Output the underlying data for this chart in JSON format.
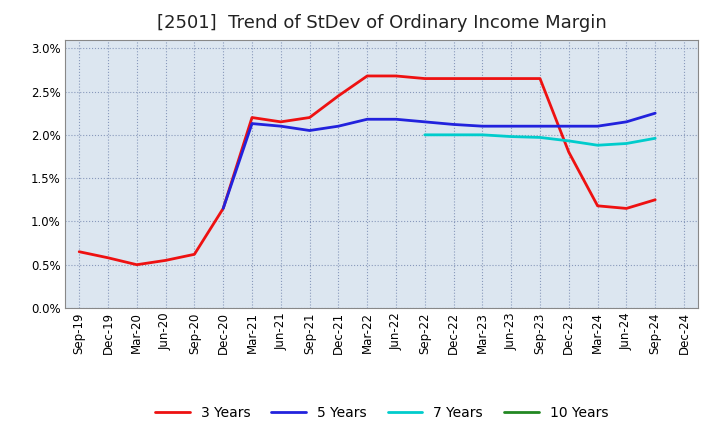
{
  "title": "[2501]  Trend of StDev of Ordinary Income Margin",
  "ylim": [
    0.0,
    0.031
  ],
  "yticks": [
    0.0,
    0.005,
    0.01,
    0.015,
    0.02,
    0.025,
    0.03
  ],
  "ytick_labels": [
    "0.0%",
    "0.5%",
    "1.0%",
    "1.5%",
    "2.0%",
    "2.5%",
    "3.0%"
  ],
  "x_labels": [
    "Sep-19",
    "Dec-19",
    "Mar-20",
    "Jun-20",
    "Sep-20",
    "Dec-20",
    "Mar-21",
    "Jun-21",
    "Sep-21",
    "Dec-21",
    "Mar-22",
    "Jun-22",
    "Sep-22",
    "Dec-22",
    "Mar-23",
    "Jun-23",
    "Sep-23",
    "Dec-23",
    "Mar-24",
    "Jun-24",
    "Sep-24",
    "Dec-24"
  ],
  "series": {
    "3 Years": {
      "color": "#ee1111",
      "linewidth": 2.0,
      "data": [
        0.0065,
        0.0058,
        0.005,
        0.0055,
        0.0062,
        0.0115,
        0.022,
        0.0215,
        0.022,
        0.0245,
        0.0268,
        0.0268,
        0.0265,
        0.0265,
        0.0265,
        0.0265,
        0.0265,
        0.018,
        0.0118,
        0.0115,
        0.0125,
        null
      ]
    },
    "5 Years": {
      "color": "#2222dd",
      "linewidth": 2.0,
      "data": [
        null,
        null,
        null,
        null,
        null,
        0.0115,
        0.0213,
        0.021,
        0.0205,
        0.021,
        0.0218,
        0.0218,
        0.0215,
        0.0212,
        0.021,
        0.021,
        0.021,
        0.021,
        0.021,
        0.0215,
        0.0225,
        null
      ]
    },
    "7 Years": {
      "color": "#00cccc",
      "linewidth": 2.0,
      "data": [
        null,
        null,
        null,
        null,
        null,
        null,
        null,
        null,
        null,
        null,
        null,
        null,
        0.02,
        0.02,
        0.02,
        0.0198,
        0.0197,
        0.0193,
        0.0188,
        0.019,
        0.0196,
        null
      ]
    },
    "10 Years": {
      "color": "#228822",
      "linewidth": 2.0,
      "data": [
        null,
        null,
        null,
        null,
        null,
        null,
        null,
        null,
        null,
        null,
        null,
        null,
        null,
        null,
        null,
        null,
        null,
        null,
        null,
        null,
        null,
        null
      ]
    }
  },
  "legend_order": [
    "3 Years",
    "5 Years",
    "7 Years",
    "10 Years"
  ],
  "plot_bg_color": "#dce6f0",
  "fig_bg_color": "#ffffff",
  "grid_color": "#8899bb",
  "title_fontsize": 13,
  "tick_fontsize": 8.5,
  "legend_fontsize": 10
}
